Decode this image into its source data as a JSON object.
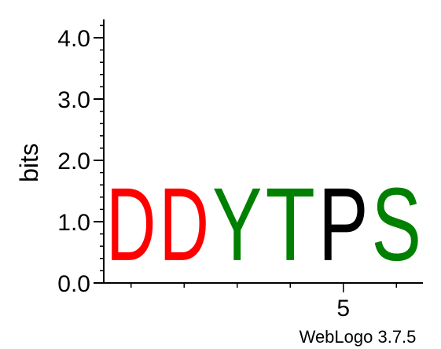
{
  "chart_data": {
    "type": "sequence-logo",
    "ylabel": "bits",
    "ylim": [
      0,
      4.3
    ],
    "yticks": [
      "0.0",
      "1.0",
      "2.0",
      "3.0",
      "4.0"
    ],
    "xtick_labels": [
      {
        "position": 5,
        "label": "5"
      }
    ],
    "positions": [
      {
        "position": 1,
        "letter": "D",
        "bits": 1.9,
        "color": "#ff0000"
      },
      {
        "position": 2,
        "letter": "D",
        "bits": 1.9,
        "color": "#ff0000"
      },
      {
        "position": 3,
        "letter": "Y",
        "bits": 1.9,
        "color": "#008000"
      },
      {
        "position": 4,
        "letter": "T",
        "bits": 1.9,
        "color": "#008000"
      },
      {
        "position": 5,
        "letter": "P",
        "bits": 1.9,
        "color": "#000000"
      },
      {
        "position": 6,
        "letter": "S",
        "bits": 1.9,
        "color": "#008000"
      }
    ],
    "footer": "WebLogo 3.7.5"
  }
}
